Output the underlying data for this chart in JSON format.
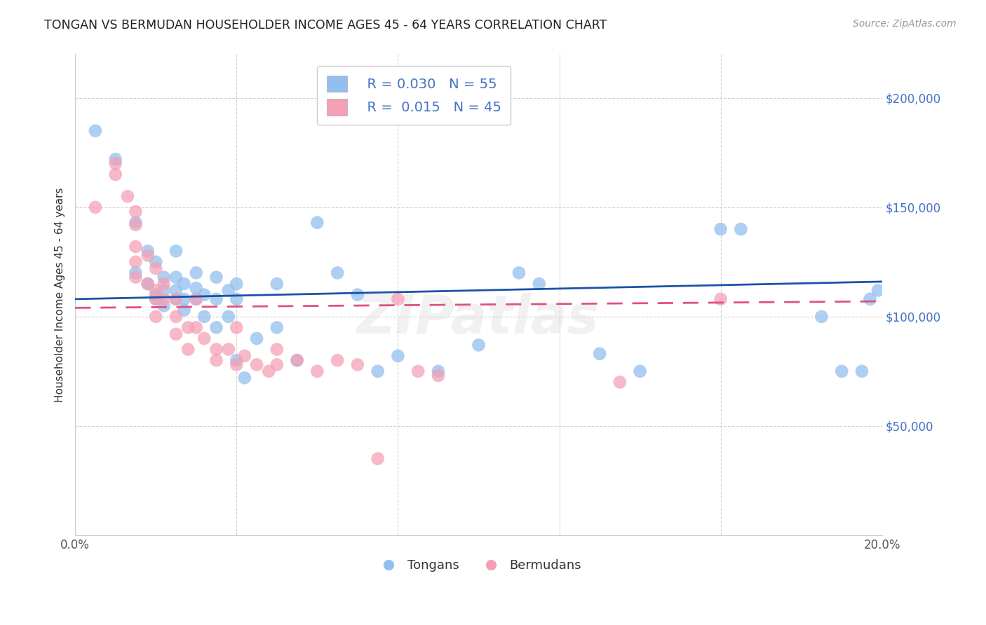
{
  "title": "TONGAN VS BERMUDAN HOUSEHOLDER INCOME AGES 45 - 64 YEARS CORRELATION CHART",
  "source": "Source: ZipAtlas.com",
  "ylabel": "Householder Income Ages 45 - 64 years",
  "xlim": [
    0.0,
    0.2
  ],
  "ylim": [
    0,
    220000
  ],
  "yticks": [
    0,
    50000,
    100000,
    150000,
    200000
  ],
  "ytick_labels": [
    "",
    "$50,000",
    "$100,000",
    "$150,000",
    "$200,000"
  ],
  "xticks": [
    0.0,
    0.04,
    0.08,
    0.12,
    0.16,
    0.2
  ],
  "xtick_labels": [
    "0.0%",
    "",
    "",
    "",
    "",
    "20.0%"
  ],
  "legend_R_tongan": "0.030",
  "legend_N_tongan": "55",
  "legend_R_bermudan": "0.015",
  "legend_N_bermudan": "45",
  "tongan_color": "#92BFED",
  "bermudan_color": "#F5A0B5",
  "tongan_line_color": "#1a52a8",
  "bermudan_line_color": "#e05080",
  "background_color": "#ffffff",
  "grid_color": "#cccccc",
  "watermark": "ZIPatlas",
  "tongan_x": [
    0.005,
    0.01,
    0.015,
    0.015,
    0.018,
    0.018,
    0.02,
    0.02,
    0.02,
    0.022,
    0.022,
    0.022,
    0.025,
    0.025,
    0.025,
    0.025,
    0.027,
    0.027,
    0.027,
    0.03,
    0.03,
    0.03,
    0.032,
    0.032,
    0.035,
    0.035,
    0.035,
    0.038,
    0.038,
    0.04,
    0.04,
    0.04,
    0.042,
    0.045,
    0.05,
    0.05,
    0.055,
    0.06,
    0.065,
    0.07,
    0.075,
    0.08,
    0.09,
    0.1,
    0.11,
    0.115,
    0.13,
    0.14,
    0.16,
    0.165,
    0.185,
    0.19,
    0.195,
    0.197,
    0.199
  ],
  "tongan_y": [
    185000,
    172000,
    143000,
    120000,
    130000,
    115000,
    125000,
    110000,
    108000,
    118000,
    112000,
    105000,
    130000,
    118000,
    112000,
    108000,
    115000,
    108000,
    103000,
    120000,
    113000,
    108000,
    110000,
    100000,
    118000,
    108000,
    95000,
    112000,
    100000,
    115000,
    108000,
    80000,
    72000,
    90000,
    115000,
    95000,
    80000,
    143000,
    120000,
    110000,
    75000,
    82000,
    75000,
    87000,
    120000,
    115000,
    83000,
    75000,
    140000,
    140000,
    100000,
    75000,
    75000,
    108000,
    112000
  ],
  "bermudan_x": [
    0.005,
    0.01,
    0.01,
    0.013,
    0.015,
    0.015,
    0.015,
    0.015,
    0.015,
    0.018,
    0.018,
    0.02,
    0.02,
    0.02,
    0.02,
    0.022,
    0.022,
    0.025,
    0.025,
    0.025,
    0.028,
    0.028,
    0.03,
    0.03,
    0.032,
    0.035,
    0.035,
    0.038,
    0.04,
    0.04,
    0.042,
    0.045,
    0.048,
    0.05,
    0.05,
    0.055,
    0.06,
    0.065,
    0.07,
    0.075,
    0.08,
    0.085,
    0.09,
    0.135,
    0.16
  ],
  "bermudan_y": [
    150000,
    170000,
    165000,
    155000,
    148000,
    142000,
    132000,
    125000,
    118000,
    128000,
    115000,
    122000,
    112000,
    108000,
    100000,
    115000,
    108000,
    108000,
    100000,
    92000,
    95000,
    85000,
    108000,
    95000,
    90000,
    85000,
    80000,
    85000,
    95000,
    78000,
    82000,
    78000,
    75000,
    85000,
    78000,
    80000,
    75000,
    80000,
    78000,
    35000,
    108000,
    75000,
    73000,
    70000,
    108000
  ],
  "tongan_line_y0": 108000,
  "tongan_line_y1": 116000,
  "bermudan_line_y0": 104000,
  "bermudan_line_y1": 107000
}
